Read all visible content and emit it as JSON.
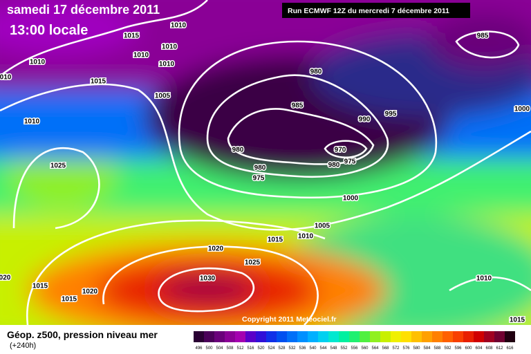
{
  "header": {
    "date": "samedi 17 décembre 2011",
    "time": "13:00 locale",
    "run": "Run ECMWF 12Z du mercredi 7 décembre 2011",
    "copyright": "Copyright 2011 Meteociel.fr"
  },
  "footer": {
    "title": "Géop. z500, pression niveau mer",
    "lead": "(+240h)"
  },
  "isobar_labels": [
    "1015",
    "1010",
    "1010",
    "1010",
    "1010",
    "1010",
    "010",
    "1015",
    "1005",
    "1010",
    "1025",
    "980",
    "985",
    "985",
    "995",
    "990",
    "1000",
    "980",
    "970",
    "975",
    "980",
    "980",
    "975",
    "1000",
    "1005",
    "1010",
    "1015",
    "1020",
    "1025",
    "1030",
    "020",
    "1015",
    "1020",
    "1015",
    "1010",
    "1015"
  ],
  "legend": {
    "labels": [
      "496",
      "500",
      "504",
      "508",
      "512",
      "516",
      "520",
      "524",
      "528",
      "532",
      "536",
      "540",
      "544",
      "548",
      "552",
      "556",
      "560",
      "564",
      "568",
      "572",
      "576",
      "580",
      "584",
      "588",
      "592",
      "596",
      "600",
      "604",
      "608",
      "612",
      "616"
    ],
    "colors": [
      "#2a0033",
      "#4b0059",
      "#6a007a",
      "#8a0096",
      "#a400b0",
      "#5a00c8",
      "#3010d8",
      "#1030e8",
      "#0050f0",
      "#0070f8",
      "#0090ff",
      "#00b0ff",
      "#00d0f0",
      "#00e8d0",
      "#00f0a0",
      "#20f070",
      "#50f040",
      "#90f020",
      "#c8f000",
      "#f0f000",
      "#ffe000",
      "#ffc000",
      "#ffa000",
      "#ff8000",
      "#ff6000",
      "#f84000",
      "#e82000",
      "#d00000",
      "#a00020",
      "#700030",
      "#200010"
    ]
  }
}
